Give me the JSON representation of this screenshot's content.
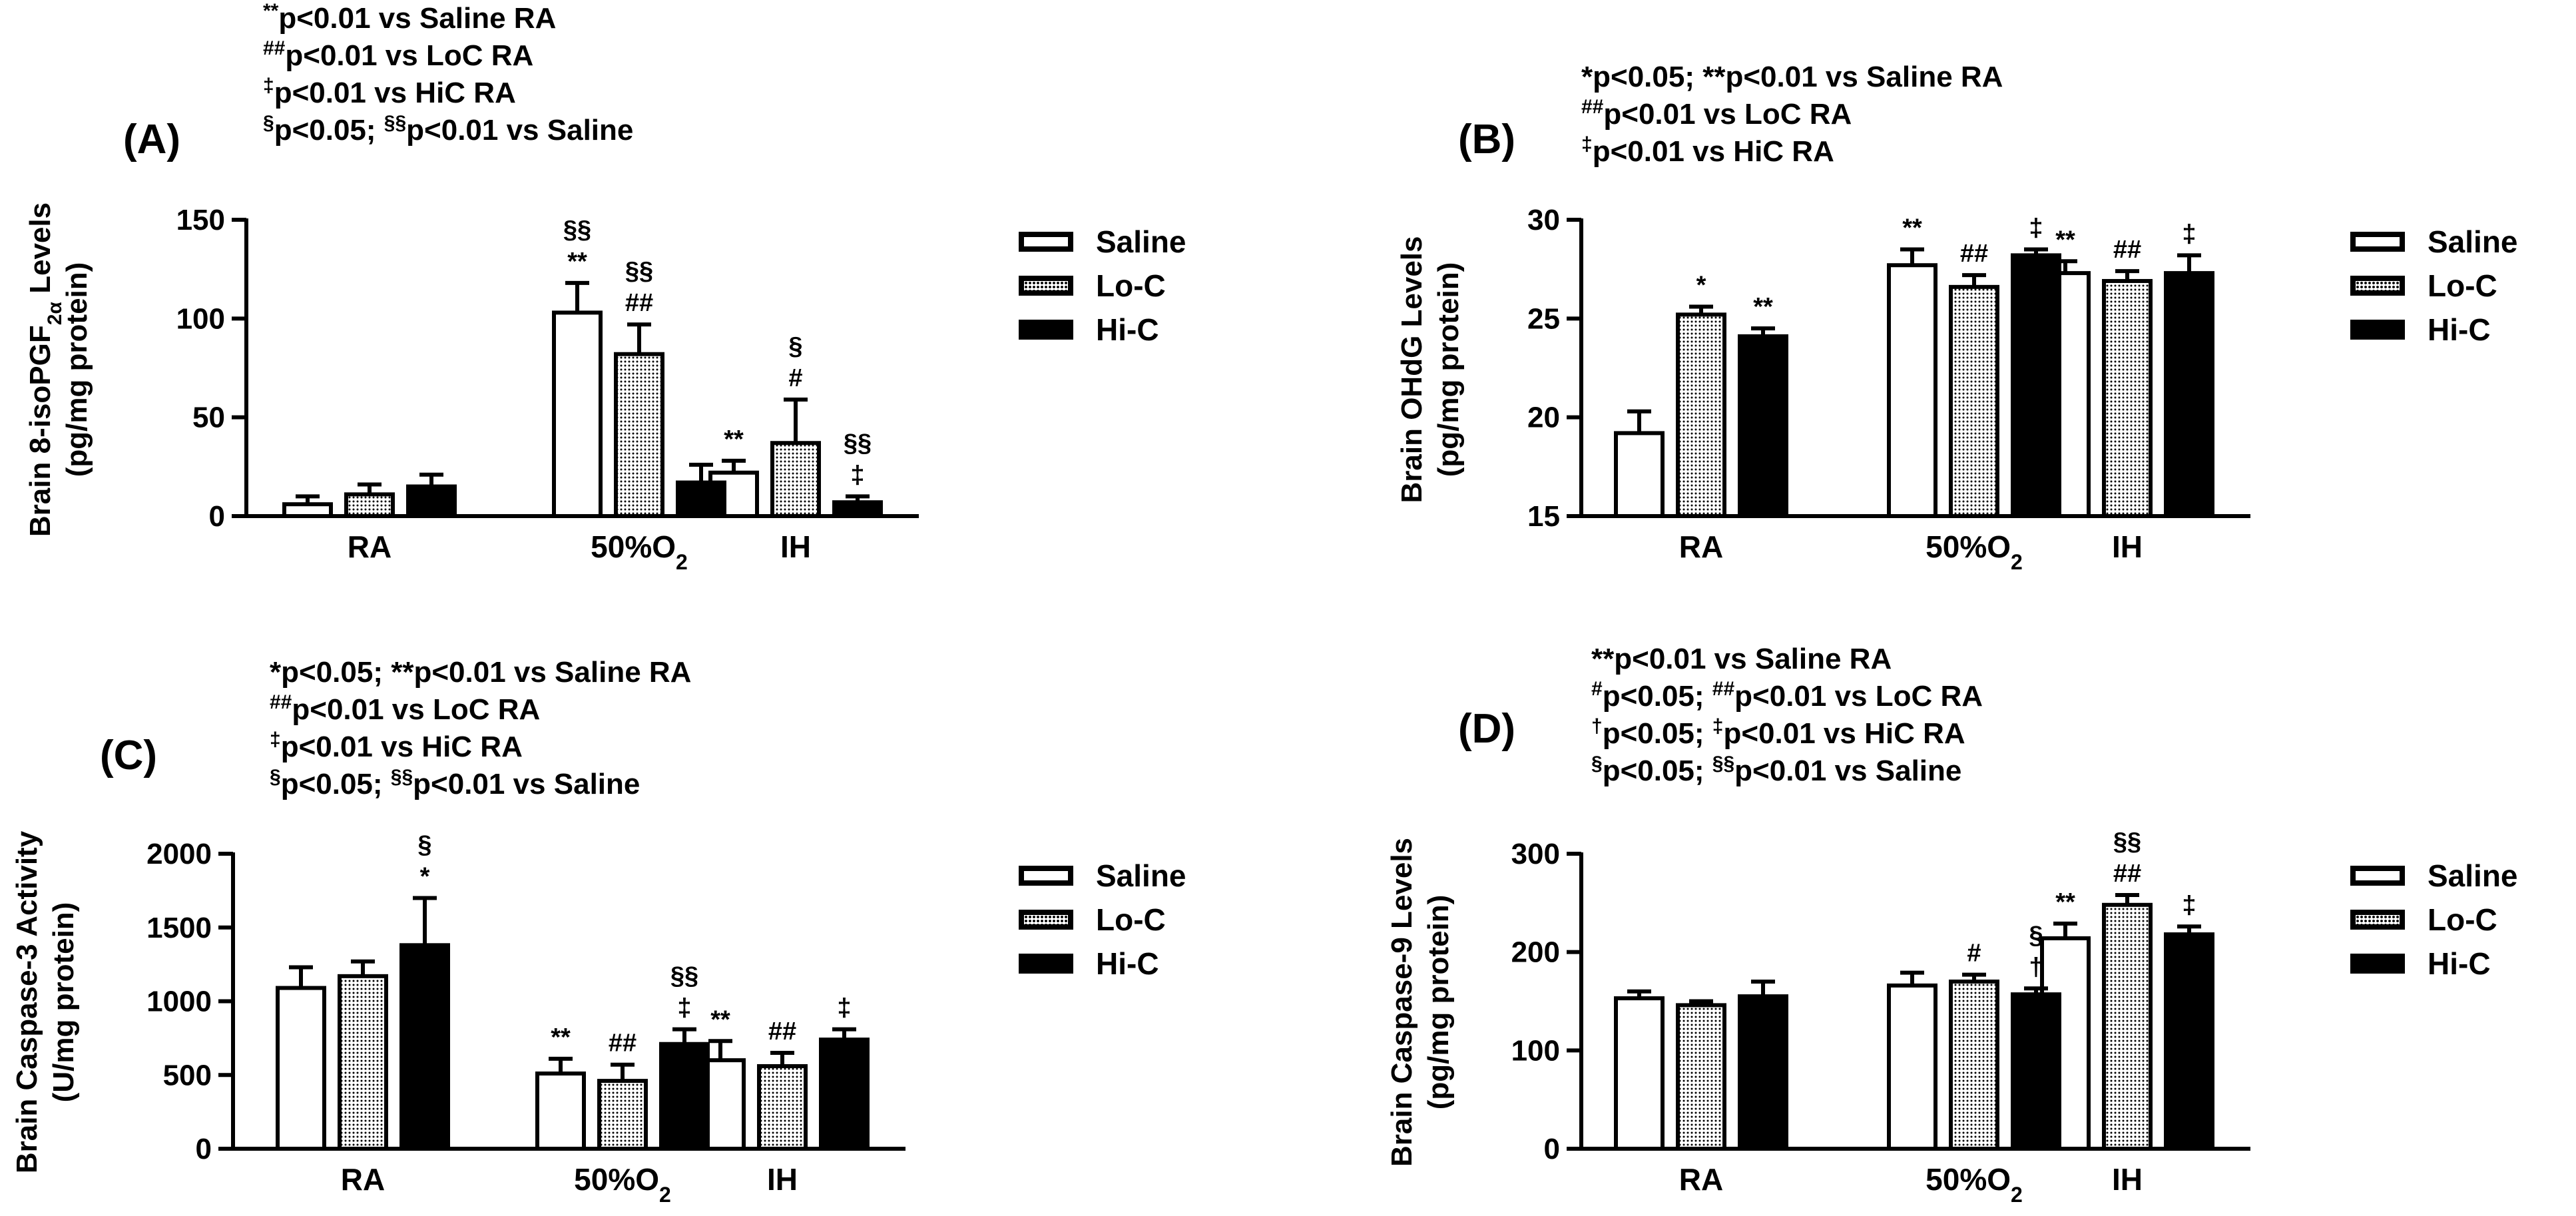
{
  "figure": {
    "panels": [
      {
        "panel_label": "(A)",
        "footnotes": [
          {
            "sym": "**",
            "text": "p<0.01 vs Saline RA"
          },
          {
            "sym": "##",
            "text": "p<0.01 vs LoC RA"
          },
          {
            "sym": "‡",
            "text": "p<0.01 vs HiC RA"
          },
          {
            "sym": "§",
            "text": "p<0.05; ",
            "sym2": "§§",
            "text2": "p<0.01 vs Saline"
          }
        ]
      },
      {
        "panel_label": "(B)",
        "footnotes": [
          {
            "sym": "",
            "text": "*p<0.05; **p<0.01 vs Saline RA"
          },
          {
            "sym": "##",
            "text": "p<0.01 vs LoC RA"
          },
          {
            "sym": "‡",
            "text": "p<0.01 vs HiC RA"
          }
        ]
      },
      {
        "panel_label": "(C)",
        "footnotes": [
          {
            "sym": "",
            "text": "*p<0.05; **p<0.01 vs Saline RA"
          },
          {
            "sym": "##",
            "text": "p<0.01 vs LoC RA"
          },
          {
            "sym": "‡",
            "text": "p<0.01 vs HiC RA"
          },
          {
            "sym": "§",
            "text": "p<0.05; ",
            "sym2": "§§",
            "text2": "p<0.01 vs Saline"
          }
        ]
      },
      {
        "panel_label": "(D)",
        "footnotes": [
          {
            "sym": "",
            "text": "**p<0.01 vs Saline RA"
          },
          {
            "sym": "#",
            "text": "p<0.05; ",
            "sym2": "##",
            "text2": "p<0.01 vs LoC RA"
          },
          {
            "sym": "†",
            "text": "p<0.05; ",
            "sym2": "‡",
            "text2": "p<0.01 vs HiC RA"
          },
          {
            "sym": "§",
            "text": "p<0.05; ",
            "sym2": "§§",
            "text2": "p<0.01 vs Saline"
          }
        ]
      }
    ],
    "legend": {
      "items": [
        "Saline",
        "Lo-C",
        "Hi-C"
      ]
    },
    "colors": {
      "saline": "#ffffff",
      "lo_c": "#7f7f7f",
      "hi_c": "#000000",
      "axis": "#000000"
    }
  },
  "chart_data": [
    {
      "type": "bar",
      "ylabel": {
        "main": "Brain 8-isoPGF",
        "sub": "2α",
        "tail": " Levels",
        "line2": "(pg/mg protein)"
      },
      "categories": [
        "RA",
        "50%O2",
        "IH"
      ],
      "ylim": [
        0,
        150
      ],
      "yticks": [
        0,
        50,
        100,
        150
      ],
      "series": [
        {
          "name": "Saline",
          "values": [
            6,
            103,
            22
          ],
          "errors": [
            4,
            15,
            6
          ],
          "annotations": [
            "",
            "§§\n**",
            "**"
          ]
        },
        {
          "name": "Lo-C",
          "values": [
            11,
            82,
            37
          ],
          "errors": [
            5,
            15,
            22
          ],
          "annotations": [
            "",
            "§§\n##",
            "§\n#"
          ]
        },
        {
          "name": "Hi-C",
          "values": [
            15,
            17,
            7
          ],
          "errors": [
            6,
            9,
            3
          ],
          "annotations": [
            "",
            "",
            "§§\n‡"
          ]
        }
      ]
    },
    {
      "type": "bar",
      "ylabel": {
        "main": "Brain OHdG Levels",
        "sub": "",
        "tail": "",
        "line2": "(pg/mg protein)"
      },
      "categories": [
        "RA",
        "50%O2",
        "IH"
      ],
      "ylim": [
        15,
        30
      ],
      "yticks": [
        15,
        20,
        25,
        30
      ],
      "series": [
        {
          "name": "Saline",
          "values": [
            19.2,
            27.7,
            27.3
          ],
          "errors": [
            1.1,
            0.8,
            0.6
          ],
          "annotations": [
            "",
            "**",
            "**"
          ]
        },
        {
          "name": "Lo-C",
          "values": [
            25.2,
            26.6,
            26.9
          ],
          "errors": [
            0.4,
            0.6,
            0.5
          ],
          "annotations": [
            "*",
            "##",
            "##"
          ]
        },
        {
          "name": "Hi-C",
          "values": [
            24.1,
            28.2,
            27.3
          ],
          "errors": [
            0.4,
            0.3,
            0.9
          ],
          "annotations": [
            "**",
            "‡",
            "‡"
          ]
        }
      ]
    },
    {
      "type": "bar",
      "ylabel": {
        "main": "Brain Caspase-3 Activity",
        "sub": "",
        "tail": "",
        "line2": "(U/mg protein)"
      },
      "categories": [
        "RA",
        "50%O2",
        "IH"
      ],
      "ylim": [
        0,
        2000
      ],
      "yticks": [
        0,
        500,
        1000,
        1500,
        2000
      ],
      "series": [
        {
          "name": "Saline",
          "values": [
            1090,
            510,
            600
          ],
          "errors": [
            140,
            100,
            130
          ],
          "annotations": [
            "",
            "**",
            "**"
          ]
        },
        {
          "name": "Lo-C",
          "values": [
            1170,
            460,
            560
          ],
          "errors": [
            100,
            110,
            90
          ],
          "annotations": [
            "",
            "##",
            "##"
          ]
        },
        {
          "name": "Hi-C",
          "values": [
            1380,
            710,
            740
          ],
          "errors": [
            320,
            100,
            70
          ],
          "annotations": [
            "§\n*",
            "§§\n‡",
            "‡"
          ]
        }
      ]
    },
    {
      "type": "bar",
      "ylabel": {
        "main": "Brain Caspase-9 Levels",
        "sub": "",
        "tail": "",
        "line2": "(pg/mg protein)"
      },
      "categories": [
        "RA",
        "50%O2",
        "IH"
      ],
      "ylim": [
        0,
        300
      ],
      "yticks": [
        0,
        100,
        200,
        300
      ],
      "series": [
        {
          "name": "Saline",
          "values": [
            153,
            166,
            214
          ],
          "errors": [
            7,
            13,
            15
          ],
          "annotations": [
            "",
            "",
            "**"
          ]
        },
        {
          "name": "Lo-C",
          "values": [
            146,
            170,
            248
          ],
          "errors": [
            4,
            7,
            10
          ],
          "annotations": [
            "",
            "#",
            "§§\n##"
          ]
        },
        {
          "name": "Hi-C",
          "values": [
            155,
            157,
            218
          ],
          "errors": [
            15,
            6,
            8
          ],
          "annotations": [
            "",
            "§\n†",
            "‡"
          ]
        }
      ]
    }
  ]
}
